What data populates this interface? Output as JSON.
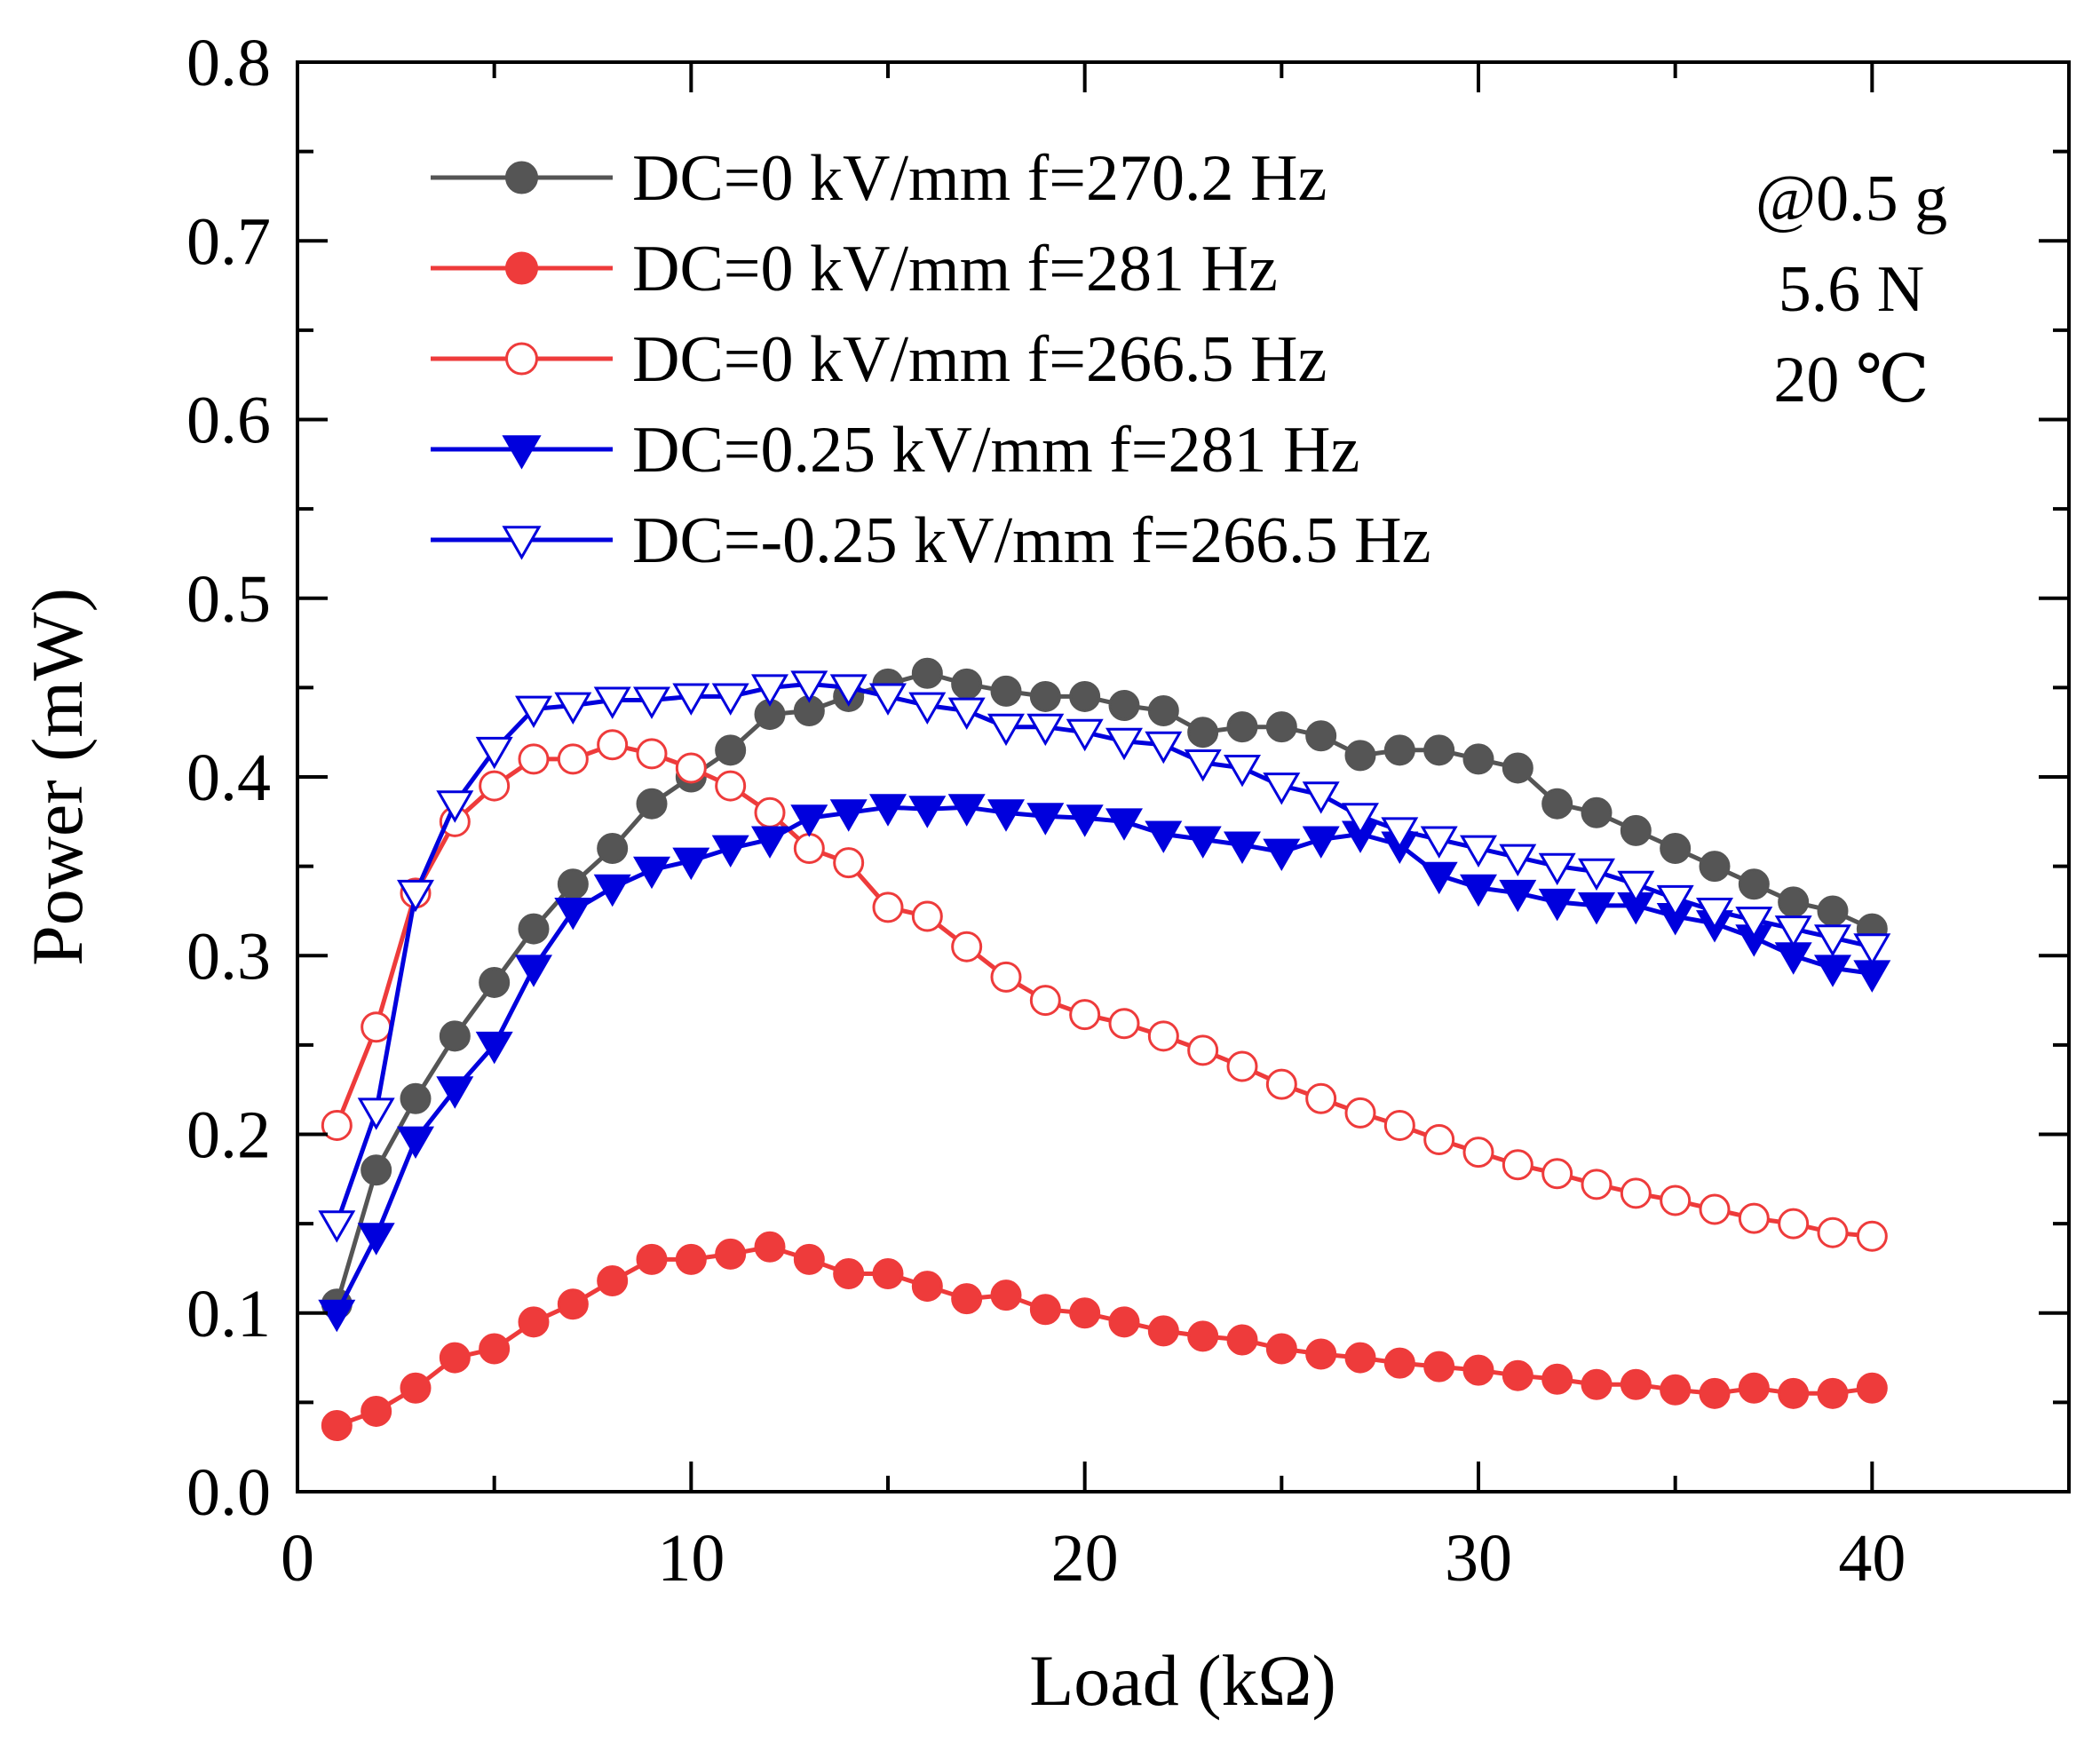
{
  "chart_data": {
    "type": "line",
    "title": "",
    "xlabel": "Load (kΩ)",
    "ylabel": "Power (mW)",
    "xlim": [
      0,
      45
    ],
    "ylim": [
      0,
      0.8
    ],
    "xticks": [
      0,
      10,
      20,
      30,
      40
    ],
    "xtick_labels": [
      "0",
      "10",
      "20",
      "30",
      "40"
    ],
    "yticks": [
      0,
      0.1,
      0.2,
      0.3,
      0.4,
      0.5,
      0.6,
      0.7,
      0.8
    ],
    "ytick_labels": [
      "0.0",
      "0.1",
      "0.2",
      "0.3",
      "0.4",
      "0.5",
      "0.6",
      "0.7",
      "0.8"
    ],
    "grid": false,
    "legend_position": "top-left",
    "annotations": [
      "@0.5 g",
      "5.6 N",
      "20 ℃"
    ],
    "x": [
      1,
      2,
      3,
      4,
      5,
      6,
      7,
      8,
      9,
      10,
      11,
      12,
      13,
      14,
      15,
      16,
      17,
      18,
      19,
      20,
      21,
      22,
      23,
      24,
      25,
      26,
      27,
      28,
      29,
      30,
      31,
      32,
      33,
      34,
      35,
      36,
      37,
      38,
      39,
      40
    ],
    "series": [
      {
        "name": "DC=0 kV/mm f=270.2 Hz",
        "color": "#555555",
        "marker": "circle-filled",
        "values": [
          0.105,
          0.18,
          0.22,
          0.255,
          0.285,
          0.315,
          0.34,
          0.36,
          0.385,
          0.4,
          0.415,
          0.435,
          0.437,
          0.445,
          0.452,
          0.458,
          0.452,
          0.448,
          0.445,
          0.445,
          0.44,
          0.437,
          0.425,
          0.428,
          0.428,
          0.423,
          0.412,
          0.415,
          0.415,
          0.41,
          0.405,
          0.385,
          0.38,
          0.37,
          0.36,
          0.35,
          0.34,
          0.33,
          0.325,
          0.315
        ]
      },
      {
        "name": "DC=0 kV/mm f=281 Hz",
        "color": "#ee3b3b",
        "marker": "circle-filled",
        "values": [
          0.037,
          0.045,
          0.058,
          0.075,
          0.08,
          0.095,
          0.105,
          0.118,
          0.13,
          0.13,
          0.133,
          0.137,
          0.13,
          0.122,
          0.122,
          0.115,
          0.108,
          0.11,
          0.102,
          0.1,
          0.095,
          0.09,
          0.087,
          0.085,
          0.08,
          0.077,
          0.075,
          0.072,
          0.07,
          0.068,
          0.065,
          0.063,
          0.06,
          0.06,
          0.057,
          0.055,
          0.058,
          0.055,
          0.055,
          0.058
        ]
      },
      {
        "name": "DC=0 kV/mm f=266.5 Hz",
        "color": "#ee3b3b",
        "marker": "circle-open",
        "values": [
          0.205,
          0.26,
          0.335,
          0.375,
          0.395,
          0.41,
          0.41,
          0.418,
          0.413,
          0.405,
          0.395,
          0.38,
          0.36,
          0.352,
          0.327,
          0.322,
          0.305,
          0.288,
          0.275,
          0.267,
          0.262,
          0.255,
          0.247,
          0.238,
          0.228,
          0.22,
          0.212,
          0.205,
          0.197,
          0.19,
          0.183,
          0.178,
          0.172,
          0.167,
          0.163,
          0.158,
          0.153,
          0.15,
          0.145,
          0.143
        ]
      },
      {
        "name": "DC=0.25 kV/mm f=281 Hz",
        "color": "#0000dd",
        "marker": "triangle-down-filled",
        "values": [
          0.1,
          0.143,
          0.197,
          0.225,
          0.25,
          0.293,
          0.325,
          0.338,
          0.348,
          0.353,
          0.36,
          0.365,
          0.377,
          0.38,
          0.383,
          0.382,
          0.383,
          0.38,
          0.378,
          0.377,
          0.375,
          0.368,
          0.365,
          0.362,
          0.358,
          0.365,
          0.368,
          0.362,
          0.345,
          0.338,
          0.335,
          0.33,
          0.328,
          0.328,
          0.322,
          0.318,
          0.31,
          0.3,
          0.293,
          0.29
        ]
      },
      {
        "name": "DC=-0.25 kV/mm f=266.5 Hz",
        "color": "#0000dd",
        "marker": "triangle-down-open",
        "values": [
          0.15,
          0.213,
          0.335,
          0.385,
          0.415,
          0.438,
          0.44,
          0.443,
          0.443,
          0.445,
          0.445,
          0.45,
          0.452,
          0.45,
          0.445,
          0.44,
          0.437,
          0.428,
          0.428,
          0.425,
          0.42,
          0.418,
          0.408,
          0.405,
          0.395,
          0.39,
          0.378,
          0.37,
          0.365,
          0.36,
          0.355,
          0.35,
          0.347,
          0.34,
          0.332,
          0.325,
          0.32,
          0.315,
          0.31,
          0.305
        ]
      }
    ]
  }
}
